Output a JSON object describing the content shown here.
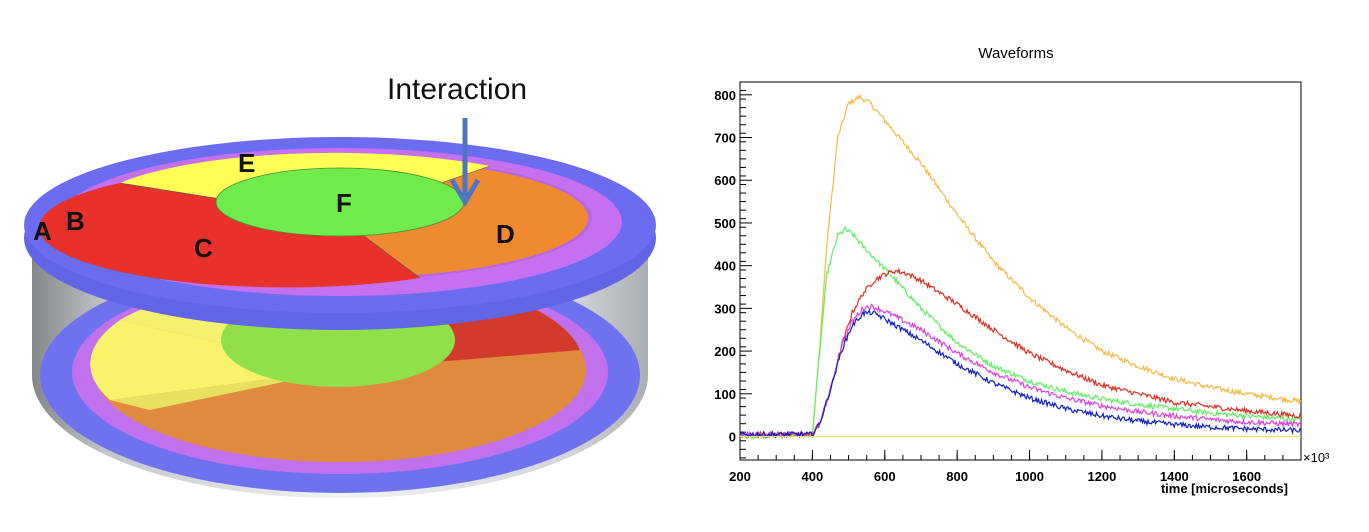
{
  "detector": {
    "interaction_label": "Interaction",
    "segments": {
      "A": "A",
      "B": "B",
      "C": "C",
      "D": "D",
      "E": "E",
      "F": "F"
    },
    "colors": {
      "ring_outer": "#6b6cf0",
      "ring_inner": "#c470f0",
      "segment_C": "#e8312a",
      "segment_D": "#ef8a30",
      "segment_E": "#ffff55",
      "segment_F": "#6fec4c",
      "arrow": "#4e74c6"
    }
  },
  "chart_data": {
    "type": "line",
    "title": "Waveforms",
    "xlabel": "time [microseconds]",
    "x_multiplier": "×10³",
    "xlim": [
      200,
      1750
    ],
    "ylim": [
      -55,
      830
    ],
    "xticks": [
      200,
      400,
      600,
      800,
      1000,
      1200,
      1400,
      1600
    ],
    "yticks": [
      0,
      100,
      200,
      300,
      400,
      500,
      600,
      700,
      800
    ],
    "grid": false,
    "series": [
      {
        "color": "#f5b942",
        "x": [
          200,
          400,
          415,
          440,
          470,
          500,
          530,
          560,
          600,
          650,
          700,
          800,
          900,
          1000,
          1100,
          1200,
          1300,
          1400,
          1500,
          1600,
          1700,
          1750
        ],
        "y": [
          0,
          5,
          150,
          450,
          700,
          780,
          795,
          780,
          740,
          690,
          640,
          520,
          410,
          325,
          255,
          200,
          165,
          135,
          115,
          100,
          88,
          82
        ]
      },
      {
        "color": "#5ef05e",
        "x": [
          200,
          400,
          415,
          440,
          470,
          490,
          510,
          540,
          580,
          620,
          700,
          800,
          900,
          1000,
          1100,
          1200,
          1300,
          1400,
          1500,
          1600,
          1700,
          1750
        ],
        "y": [
          0,
          5,
          150,
          380,
          470,
          485,
          475,
          445,
          410,
          375,
          300,
          220,
          165,
          130,
          105,
          88,
          75,
          65,
          55,
          48,
          42,
          40
        ]
      },
      {
        "color": "#e03020",
        "x": [
          200,
          400,
          420,
          450,
          480,
          510,
          540,
          570,
          600,
          630,
          660,
          700,
          800,
          900,
          1000,
          1100,
          1200,
          1300,
          1400,
          1500,
          1600,
          1700,
          1750
        ],
        "y": [
          5,
          5,
          30,
          110,
          210,
          290,
          335,
          365,
          380,
          388,
          382,
          365,
          310,
          250,
          195,
          155,
          120,
          100,
          80,
          70,
          60,
          52,
          48
        ]
      },
      {
        "color": "#e040e0",
        "x": [
          200,
          400,
          420,
          450,
          480,
          510,
          540,
          560,
          580,
          620,
          700,
          800,
          900,
          1000,
          1100,
          1200,
          1300,
          1400,
          1500,
          1600,
          1700,
          1750
        ],
        "y": [
          5,
          5,
          30,
          110,
          210,
          270,
          300,
          305,
          300,
          285,
          250,
          195,
          150,
          115,
          90,
          72,
          58,
          48,
          40,
          34,
          30,
          28
        ]
      },
      {
        "color": "#1020c8",
        "x": [
          200,
          400,
          420,
          450,
          480,
          510,
          540,
          560,
          580,
          620,
          700,
          800,
          900,
          1000,
          1100,
          1200,
          1300,
          1400,
          1500,
          1600,
          1700,
          1750
        ],
        "y": [
          5,
          5,
          30,
          110,
          200,
          260,
          288,
          290,
          285,
          265,
          225,
          170,
          125,
          90,
          65,
          48,
          36,
          28,
          22,
          18,
          15,
          14
        ]
      },
      {
        "color": "#f0e060",
        "x": [
          200,
          1750
        ],
        "y": [
          0,
          0
        ]
      }
    ]
  }
}
